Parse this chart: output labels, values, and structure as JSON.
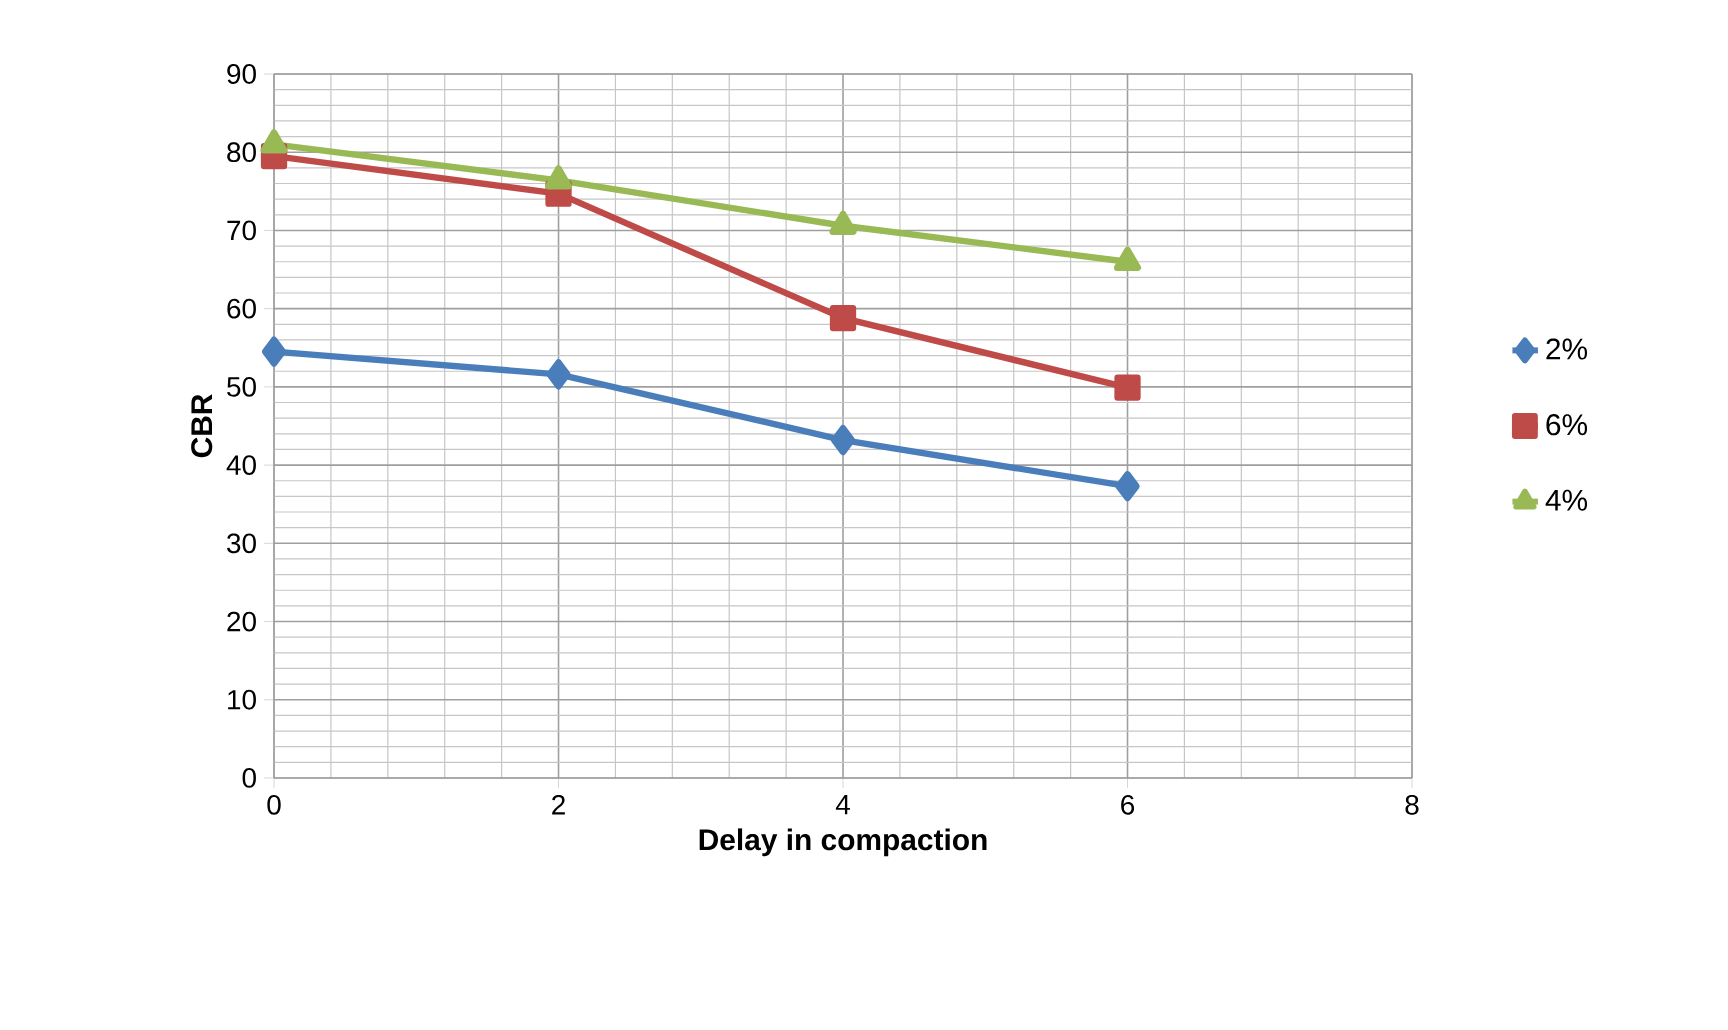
{
  "chart_data": {
    "type": "line",
    "xlabel": "Delay in compaction",
    "ylabel": "CBR",
    "x": [
      0,
      2,
      4,
      6
    ],
    "series": [
      {
        "name": "2%",
        "color": "#4a7ebb",
        "marker": "diamond",
        "values": [
          54.5,
          51.6,
          43.2,
          37.3
        ]
      },
      {
        "name": "6%",
        "color": "#be4b48",
        "marker": "square",
        "values": [
          79.5,
          74.7,
          58.8,
          49.9
        ]
      },
      {
        "name": "4%",
        "color": "#98b954",
        "marker": "triangle",
        "values": [
          81,
          76.4,
          70.6,
          66
        ]
      }
    ],
    "xlim": [
      0,
      8
    ],
    "xticks": [
      0,
      2,
      4,
      6,
      8
    ],
    "ylim": [
      0,
      90
    ],
    "yticks": [
      0,
      10,
      20,
      30,
      40,
      50,
      60,
      70,
      80,
      90
    ],
    "grid": true,
    "legend": "right",
    "line_style": "solid"
  }
}
